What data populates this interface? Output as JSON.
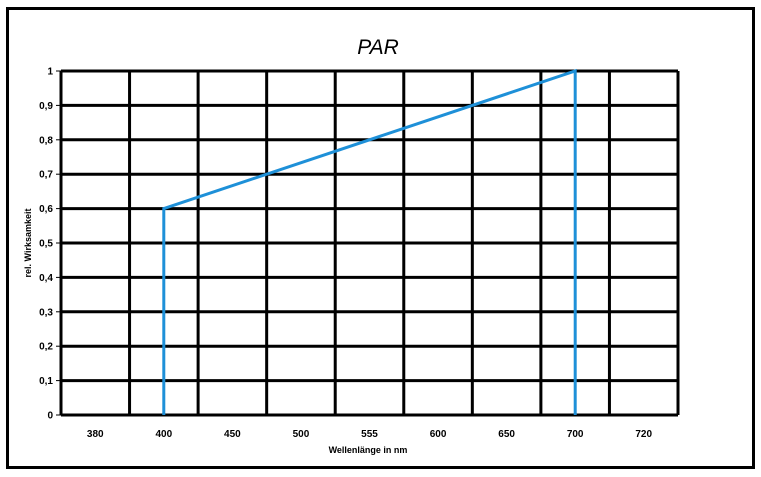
{
  "chart_data": {
    "type": "line",
    "title": "PAR",
    "xlabel": "Wellenlänge in nm",
    "ylabel": "rel. Wirksamkeit",
    "x_tick_labels": [
      "380",
      "400",
      "450",
      "500",
      "555",
      "600",
      "650",
      "700",
      "720"
    ],
    "y_tick_labels": [
      "0",
      "0,1",
      "0,2",
      "0,3",
      "0,4",
      "0,5",
      "0,6",
      "0,7",
      "0,8",
      "0,9",
      "1"
    ],
    "ylim": [
      0,
      1
    ],
    "grid": true,
    "series": [
      {
        "color": "#1e90d8",
        "points": [
          {
            "x": 400,
            "y": 0
          },
          {
            "x": 400,
            "y": 0.6
          },
          {
            "x": 700,
            "y": 1.0
          },
          {
            "x": 700,
            "y": 0
          }
        ]
      }
    ]
  }
}
